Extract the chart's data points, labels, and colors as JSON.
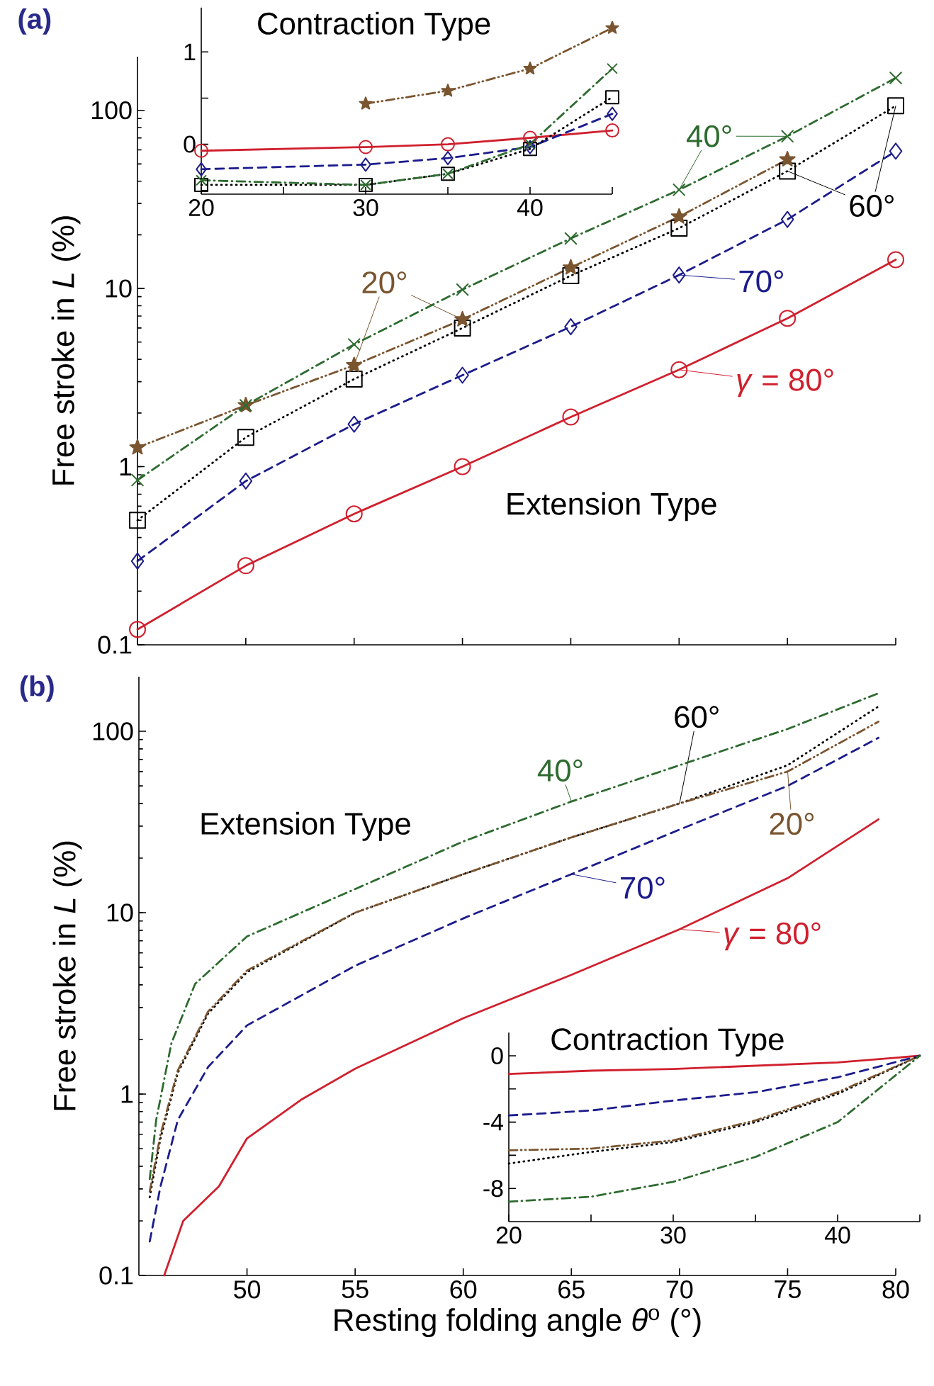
{
  "chart_data": [
    {
      "type": "line",
      "title": "(a)",
      "ylabel": "Free stroke in *L* (%)",
      "annotations": [
        "Extension Type"
      ],
      "log": "y",
      "legend": "right",
      "tick_labels": "y",
      "xlim": [
        45,
        80
      ],
      "ylim": [
        0.1,
        200
      ],
      "xticks": [
        45,
        50,
        55,
        60,
        65,
        70,
        75,
        80
      ],
      "yticks": [
        0.1,
        1,
        10,
        100
      ],
      "series": [
        {
          "name": "*γ* = 80°",
          "color": "#d0202e",
          "marker": "circle",
          "line_style": "solid",
          "x": [
            45,
            50,
            55,
            60,
            65,
            70,
            75,
            80
          ],
          "values": [
            0.122,
            0.278,
            0.543,
            1.0,
            1.9,
            3.5,
            6.8,
            14.5
          ]
        },
        {
          "name": "70°",
          "color": "#1c1c8c",
          "marker": "diamond",
          "line_style": "dashed",
          "x": [
            45,
            50,
            55,
            60,
            65,
            70,
            75,
            80
          ],
          "values": [
            0.295,
            0.83,
            1.73,
            3.26,
            6.1,
            11.9,
            24.4,
            59
          ]
        },
        {
          "name": "60°",
          "color": "#000000",
          "marker": "square",
          "line_style": "dotted",
          "x": [
            45,
            50,
            55,
            60,
            65,
            70,
            75,
            80
          ],
          "values": [
            0.5,
            1.46,
            3.1,
            6.0,
            11.8,
            21.8,
            45.6,
            106
          ]
        },
        {
          "name": "20°",
          "color": "#7a5530",
          "marker": "star",
          "line_style": "dashdotdot",
          "x": [
            45,
            50,
            55,
            60,
            65,
            70,
            75
          ],
          "values": [
            1.28,
            2.21,
            3.71,
            6.7,
            13.1,
            25.3,
            53
          ]
        },
        {
          "name": "40°",
          "color": "#2e6b30",
          "marker": "cross",
          "line_style": "dashdot",
          "x": [
            45,
            50,
            55,
            60,
            65,
            70,
            75,
            80
          ],
          "values": [
            0.84,
            2.21,
            4.85,
            9.85,
            19.1,
            35.8,
            71.5,
            152
          ]
        }
      ]
    },
    {
      "type": "line",
      "title": "Contraction Type",
      "xlim": [
        20,
        45
      ],
      "ylim": [
        -0.54,
        1.48
      ],
      "xticks": [
        20,
        {
          "value": 25,
          "label": null
        },
        30,
        {
          "value": 35,
          "label": null
        },
        40,
        {
          "value": 45,
          "label": null
        }
      ],
      "yticks": [
        {
          "value": -0.5,
          "label": null
        },
        0,
        {
          "value": 0.5,
          "label": null
        },
        1
      ],
      "series": [
        {
          "color": "#d0202e",
          "marker": "circle",
          "line_style": "solid",
          "x": [
            20,
            30,
            35,
            40,
            45
          ],
          "values": [
            -0.07,
            -0.03,
            0,
            0.07,
            0.15
          ]
        },
        {
          "color": "#1c1c8c",
          "marker": "diamond",
          "line_style": "dashed",
          "x": [
            20,
            30,
            35,
            40,
            45
          ],
          "values": [
            -0.27,
            -0.22,
            -0.15,
            -0.03,
            0.33
          ]
        },
        {
          "color": "#000000",
          "marker": "square",
          "line_style": "dotted",
          "x": [
            20,
            30,
            35,
            40,
            45
          ],
          "values": [
            -0.44,
            -0.44,
            -0.32,
            -0.05,
            0.51
          ]
        },
        {
          "color": "#7a5530",
          "marker": "star",
          "line_style": "dashdotdot",
          "x": [
            30,
            35,
            40,
            45
          ],
          "values": [
            0.44,
            0.58,
            0.82,
            1.26
          ]
        },
        {
          "color": "#2e6b30",
          "marker": "cross",
          "line_style": "dashdot",
          "x": [
            20,
            30,
            35,
            40,
            45
          ],
          "values": [
            -0.39,
            -0.44,
            -0.32,
            0.0,
            0.82
          ]
        }
      ]
    },
    {
      "type": "line",
      "title": "(b)",
      "xlabel": "Resting folding angle *θ*$^{o}$ (°)",
      "ylabel": "Free stroke in *L* (%)",
      "annotations": [
        "Extension Type"
      ],
      "log": "y",
      "legend": "right",
      "xlim": [
        45,
        80
      ],
      "ylim": [
        0.1,
        200
      ],
      "xticks": [
        50,
        55,
        60,
        65,
        70,
        75,
        80
      ],
      "yticks": [
        0.1,
        1,
        10,
        100
      ],
      "series": [
        {
          "name": "*γ* = 80°",
          "color": "#d0202e",
          "line_style": "solid",
          "x": [
            46.17,
            47.05,
            48.7,
            50,
            52.5,
            55,
            60,
            65,
            70,
            75,
            79.2
          ],
          "values": [
            0.1,
            0.2,
            0.31,
            0.57,
            0.93,
            1.38,
            2.62,
            4.54,
            8.1,
            15.5,
            32.7
          ]
        },
        {
          "name": "70°",
          "color": "#1c1c8c",
          "line_style": "dashed",
          "x": [
            45.5,
            46,
            46.8,
            48.2,
            50,
            55,
            60,
            65,
            70,
            75,
            79.2
          ],
          "values": [
            0.154,
            0.31,
            0.72,
            1.41,
            2.39,
            5.1,
            9.3,
            16.3,
            28.7,
            50,
            92
          ]
        },
        {
          "name": "60°",
          "color": "#000000",
          "line_style": "dotted",
          "x": [
            45.5,
            46,
            46.8,
            48.2,
            50,
            55,
            60,
            65,
            70,
            75,
            79.2
          ],
          "values": [
            0.27,
            0.57,
            1.31,
            2.78,
            4.7,
            10,
            16.3,
            26,
            40,
            65,
            137
          ]
        },
        {
          "name": "20°",
          "color": "#7a5530",
          "line_style": "dashdotdot",
          "x": [
            45.5,
            46,
            46.8,
            48.2,
            50,
            55,
            60,
            65,
            70,
            75,
            79.2
          ],
          "values": [
            0.29,
            0.6,
            1.35,
            2.85,
            4.8,
            10,
            16.3,
            26,
            40,
            60,
            113
          ]
        },
        {
          "name": "40°",
          "color": "#2e6b30",
          "line_style": "dashdot",
          "x": [
            45.5,
            45.8,
            46.5,
            47.6,
            50,
            55,
            60,
            65,
            70,
            75,
            79.2
          ],
          "values": [
            0.34,
            0.72,
            1.9,
            4.05,
            7.4,
            13.5,
            24.7,
            41,
            65,
            103,
            162
          ]
        }
      ]
    },
    {
      "type": "line",
      "title": "Contraction Type",
      "xlim": [
        20,
        45
      ],
      "ylim": [
        -10,
        1.4
      ],
      "xticks": [
        20,
        {
          "value": 25,
          "label": null
        },
        30,
        {
          "value": 35,
          "label": null
        },
        40,
        {
          "value": 45,
          "label": null
        }
      ],
      "yticks": [
        -8,
        {
          "value": -6,
          "label": null
        },
        -4,
        {
          "value": -2,
          "label": null
        },
        0
      ],
      "series": [
        {
          "color": "#d0202e",
          "line_style": "solid",
          "x": [
            20,
            25,
            30,
            35,
            40,
            45
          ],
          "values": [
            -1.1,
            -0.9,
            -0.8,
            -0.6,
            -0.4,
            0
          ]
        },
        {
          "color": "#1c1c8c",
          "line_style": "dashed",
          "x": [
            20,
            25,
            30,
            35,
            40,
            45
          ],
          "values": [
            -3.6,
            -3.3,
            -2.7,
            -2.2,
            -1.3,
            0
          ]
        },
        {
          "color": "#000000",
          "line_style": "dotted",
          "x": [
            20,
            25,
            30,
            35,
            40,
            45
          ],
          "values": [
            -6.5,
            -5.8,
            -5.2,
            -4.0,
            -2.3,
            0
          ]
        },
        {
          "color": "#7a5530",
          "line_style": "dashdotdot",
          "x": [
            20,
            25,
            30,
            35,
            40,
            45
          ],
          "values": [
            -5.7,
            -5.6,
            -5.1,
            -3.9,
            -2.2,
            0
          ]
        },
        {
          "color": "#2e6b30",
          "line_style": "dashdot",
          "x": [
            20,
            25,
            30,
            35,
            40,
            45
          ],
          "values": [
            -8.8,
            -8.5,
            -7.6,
            -6.1,
            -4.0,
            0
          ]
        }
      ]
    }
  ]
}
